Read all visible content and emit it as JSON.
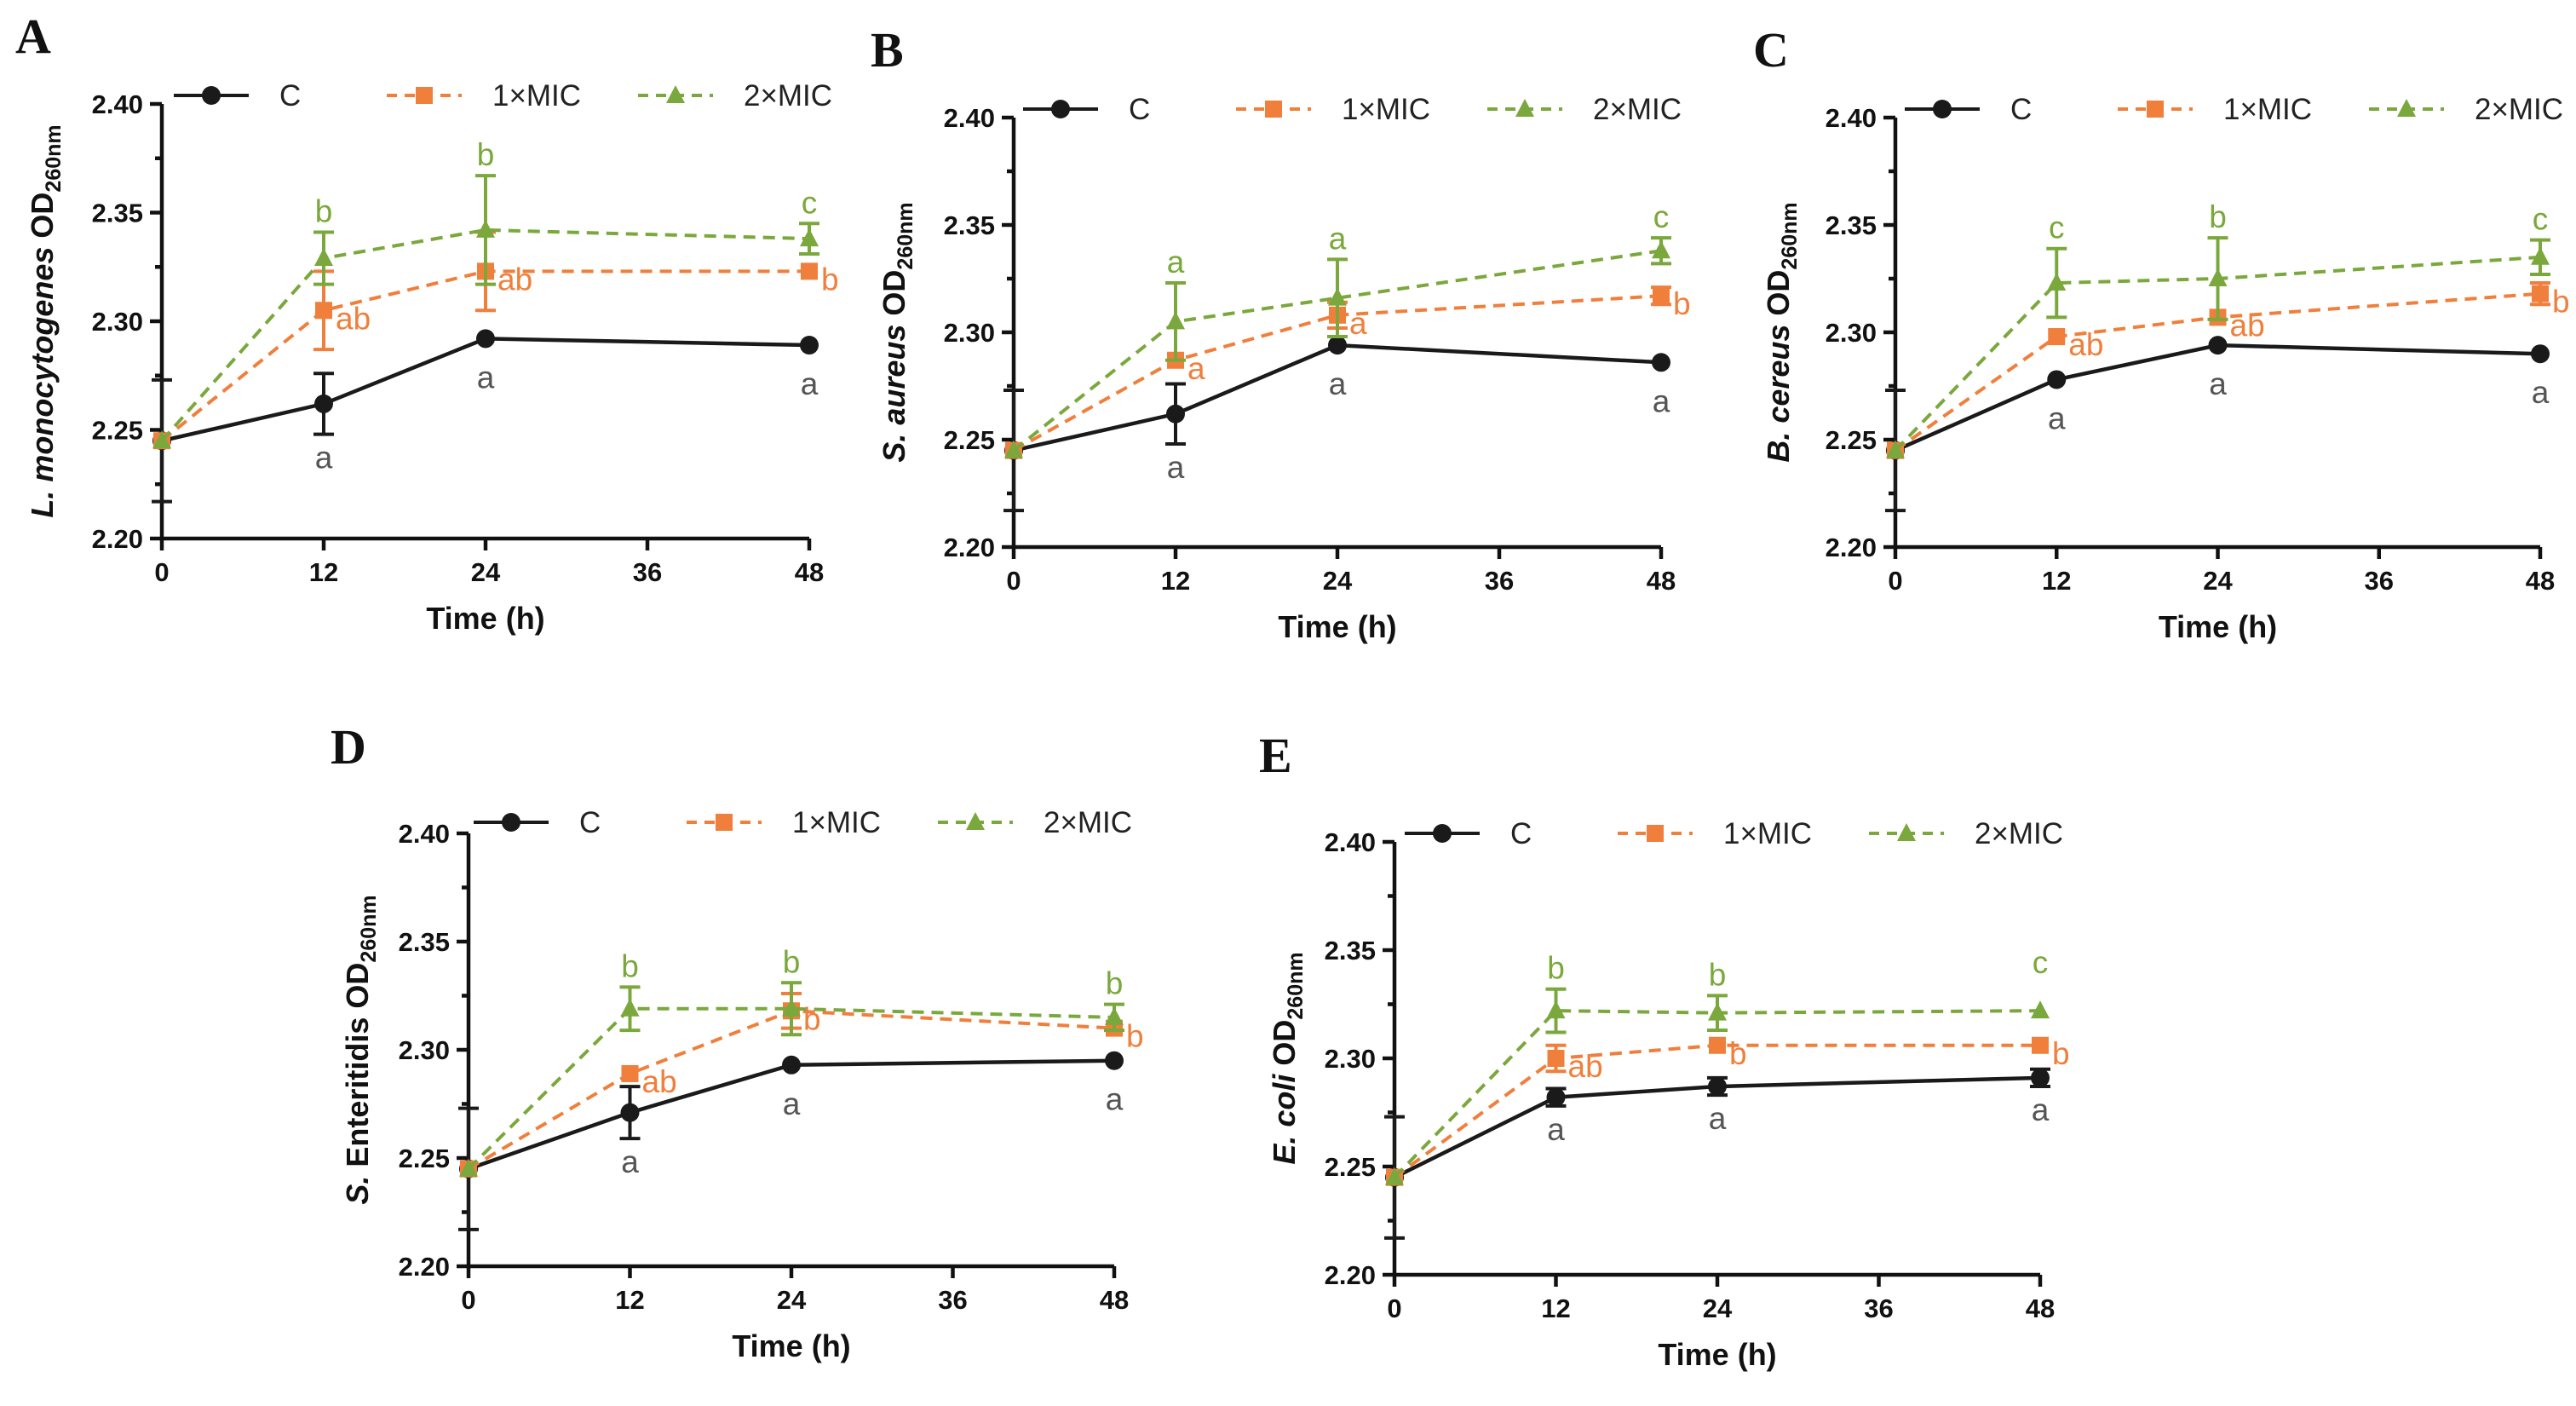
{
  "colors": {
    "C": "#1a1a1a",
    "1xMIC": "#f07f3c",
    "2xMIC": "#7aa83c",
    "axis": "#111111"
  },
  "chart_data": [
    {
      "panel": "A",
      "type": "line",
      "ylabel": {
        "species": "L. monocytogenes",
        "species_italic": true,
        "od": "OD",
        "sub": "260nm"
      },
      "xlabel": "Time (h)",
      "x": [
        0,
        12,
        24,
        48
      ],
      "xticks": [
        "0",
        "12",
        "24",
        "36",
        "48"
      ],
      "yticks": [
        "2.20",
        "2.25",
        "2.30",
        "2.35",
        "2.40"
      ],
      "ylim": [
        2.2,
        2.4
      ],
      "xlim": [
        0,
        48
      ],
      "legend": [
        "C",
        "1×MIC",
        "2×MIC"
      ],
      "series": [
        {
          "name": "C",
          "key": "C",
          "values": [
            2.245,
            2.262,
            2.292,
            2.289
          ],
          "err": [
            0.028,
            0.014,
            0,
            0
          ],
          "labels": [
            "",
            "a",
            "a",
            "a"
          ]
        },
        {
          "name": "1×MIC",
          "key": "1xMIC",
          "values": [
            2.245,
            2.305,
            2.323,
            2.323
          ],
          "err": [
            0,
            0.018,
            0.018,
            0
          ],
          "labels": [
            "",
            "ab",
            "ab",
            "b"
          ]
        },
        {
          "name": "2×MIC",
          "key": "2xMIC",
          "values": [
            2.245,
            2.329,
            2.342,
            2.338
          ],
          "err": [
            0,
            0.012,
            0.025,
            0.007
          ],
          "labels": [
            "",
            "b",
            "b",
            "c"
          ]
        }
      ]
    },
    {
      "panel": "B",
      "type": "line",
      "ylabel": {
        "species": "S. aureus",
        "species_italic": true,
        "od": "OD",
        "sub": "260nm"
      },
      "xlabel": "Time (h)",
      "x": [
        0,
        12,
        24,
        48
      ],
      "xticks": [
        "0",
        "12",
        "24",
        "36",
        "48"
      ],
      "yticks": [
        "2.20",
        "2.25",
        "2.30",
        "2.35",
        "2.40"
      ],
      "ylim": [
        2.2,
        2.4
      ],
      "xlim": [
        0,
        48
      ],
      "legend": [
        "C",
        "1×MIC",
        "2×MIC"
      ],
      "series": [
        {
          "name": "C",
          "key": "C",
          "values": [
            2.245,
            2.262,
            2.294,
            2.286
          ],
          "err": [
            0.028,
            0.014,
            0,
            0
          ],
          "labels": [
            "",
            "a",
            "a",
            "a"
          ]
        },
        {
          "name": "1×MIC",
          "key": "1xMIC",
          "values": [
            2.245,
            2.287,
            2.308,
            2.317
          ],
          "err": [
            0,
            0,
            0.006,
            0.004
          ],
          "labels": [
            "",
            "a",
            "a",
            "b"
          ]
        },
        {
          "name": "2×MIC",
          "key": "2xMIC",
          "values": [
            2.245,
            2.305,
            2.316,
            2.338
          ],
          "err": [
            0,
            0.018,
            0.018,
            0.006
          ],
          "labels": [
            "",
            "a",
            "a",
            "c"
          ]
        }
      ]
    },
    {
      "panel": "C",
      "type": "line",
      "ylabel": {
        "species": "B. cereus",
        "species_italic": true,
        "od": "OD",
        "sub": "260nm"
      },
      "xlabel": "Time (h)",
      "x": [
        0,
        12,
        24,
        48
      ],
      "xticks": [
        "0",
        "12",
        "24",
        "36",
        "48"
      ],
      "yticks": [
        "2.20",
        "2.25",
        "2.30",
        "2.35",
        "2.40"
      ],
      "ylim": [
        2.2,
        2.4
      ],
      "xlim": [
        0,
        48
      ],
      "legend": [
        "C",
        "1×MIC",
        "2×MIC"
      ],
      "series": [
        {
          "name": "C",
          "key": "C",
          "values": [
            2.245,
            2.278,
            2.294,
            2.29
          ],
          "err": [
            0.028,
            0,
            0,
            0
          ],
          "labels": [
            "",
            "a",
            "a",
            "a"
          ]
        },
        {
          "name": "1×MIC",
          "key": "1xMIC",
          "values": [
            2.245,
            2.298,
            2.307,
            2.318
          ],
          "err": [
            0,
            0,
            0,
            0.005
          ],
          "labels": [
            "",
            "ab",
            "ab",
            "b"
          ]
        },
        {
          "name": "2×MIC",
          "key": "2xMIC",
          "values": [
            2.245,
            2.323,
            2.325,
            2.335
          ],
          "err": [
            0,
            0.016,
            0.019,
            0.008
          ],
          "labels": [
            "",
            "c",
            "b",
            "c"
          ]
        }
      ]
    },
    {
      "panel": "D",
      "type": "line",
      "ylabel": {
        "species": "S.",
        "species_italic": true,
        "rest": " Enteritidis",
        "od": "OD",
        "sub": "260nm"
      },
      "xlabel": "Time (h)",
      "x": [
        0,
        12,
        24,
        48
      ],
      "xticks": [
        "0",
        "12",
        "24",
        "36",
        "48"
      ],
      "yticks": [
        "2.20",
        "2.25",
        "2.30",
        "2.35",
        "2.40"
      ],
      "ylim": [
        2.2,
        2.4
      ],
      "xlim": [
        0,
        48
      ],
      "legend": [
        "C",
        "1×MIC",
        "2×MIC"
      ],
      "series": [
        {
          "name": "C",
          "key": "C",
          "values": [
            2.245,
            2.271,
            2.293,
            2.295
          ],
          "err": [
            0.028,
            0.012,
            0,
            0
          ],
          "labels": [
            "",
            "a",
            "a",
            "a"
          ]
        },
        {
          "name": "1×MIC",
          "key": "1xMIC",
          "values": [
            2.245,
            2.289,
            2.318,
            2.31
          ],
          "err": [
            0,
            0,
            0.008,
            0
          ],
          "labels": [
            "",
            "ab",
            "b",
            "b"
          ]
        },
        {
          "name": "2×MIC",
          "key": "2xMIC",
          "values": [
            2.245,
            2.319,
            2.319,
            2.315
          ],
          "err": [
            0,
            0.01,
            0.012,
            0.006
          ],
          "labels": [
            "",
            "b",
            "b",
            "b"
          ]
        }
      ]
    },
    {
      "panel": "E",
      "type": "line",
      "ylabel": {
        "species": "E. coli",
        "species_italic": true,
        "od": "OD",
        "sub": "260nm"
      },
      "xlabel": "Time (h)",
      "x": [
        0,
        12,
        24,
        48
      ],
      "xticks": [
        "0",
        "12",
        "24",
        "36",
        "48"
      ],
      "yticks": [
        "2.20",
        "2.25",
        "2.30",
        "2.35",
        "2.40"
      ],
      "ylim": [
        2.2,
        2.4
      ],
      "xlim": [
        0,
        48
      ],
      "legend": [
        "C",
        "1×MIC",
        "2×MIC"
      ],
      "series": [
        {
          "name": "C",
          "key": "C",
          "values": [
            2.245,
            2.282,
            2.287,
            2.291
          ],
          "err": [
            0.028,
            0.004,
            0.004,
            0.004
          ],
          "labels": [
            "",
            "a",
            "a",
            "a"
          ]
        },
        {
          "name": "1×MIC",
          "key": "1xMIC",
          "values": [
            2.245,
            2.3,
            2.306,
            2.306
          ],
          "err": [
            0,
            0.006,
            0,
            0
          ],
          "labels": [
            "",
            "ab",
            "b",
            "b"
          ]
        },
        {
          "name": "2×MIC",
          "key": "2xMIC",
          "values": [
            2.245,
            2.322,
            2.321,
            2.322
          ],
          "err": [
            0,
            0.01,
            0.008,
            0
          ],
          "labels": [
            "",
            "b",
            "b",
            "c"
          ]
        }
      ]
    }
  ]
}
